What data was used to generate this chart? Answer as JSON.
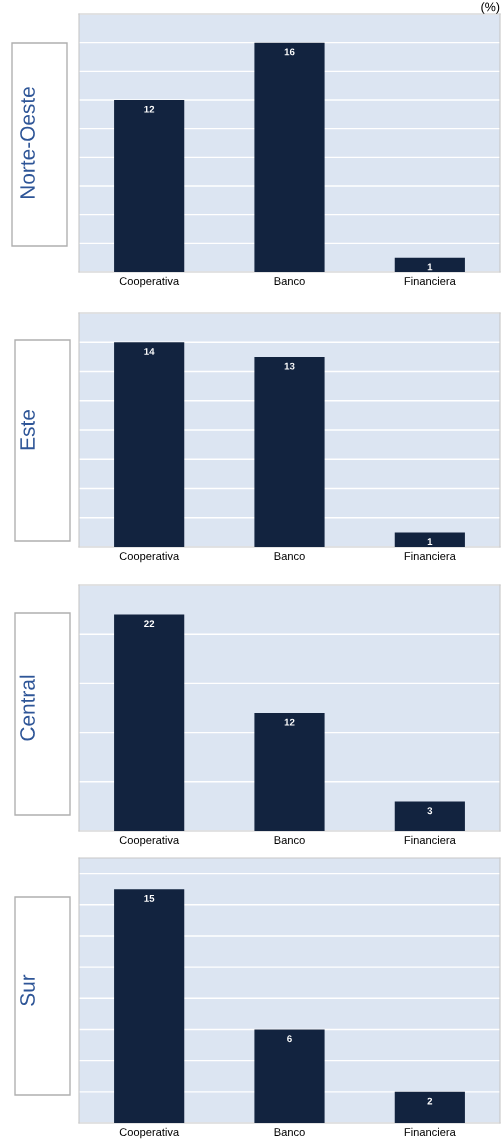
{
  "chart_data": [
    {
      "type": "bar",
      "title": "(%)",
      "ylabel": "Norte-Oeste",
      "categories": [
        "Cooperativa",
        "Banco",
        "Financiera"
      ],
      "values": [
        12,
        16,
        1
      ],
      "color": "#12233f",
      "ylim": [
        0,
        18
      ],
      "yticks": [
        {
          "value": 0,
          "label": null
        },
        {
          "value": 2,
          "label": null
        },
        {
          "value": 4,
          "label": null
        },
        {
          "value": 6,
          "label": null
        },
        {
          "value": 8,
          "label": null
        },
        {
          "value": 10,
          "label": null
        },
        {
          "value": 12,
          "label": null
        },
        {
          "value": 14,
          "label": null
        },
        {
          "value": 16,
          "label": null
        },
        {
          "value": 18,
          "label": null
        }
      ],
      "grid": "y",
      "data_labels": true,
      "tick_labels": "x"
    },
    {
      "type": "bar",
      "ylabel": "Este",
      "categories": [
        "Cooperativa",
        "Banco",
        "Financiera"
      ],
      "values": [
        14,
        13,
        1
      ],
      "color": "#12233f",
      "ylim": [
        0,
        16
      ],
      "yticks": [
        {
          "value": 0,
          "label": null
        },
        {
          "value": 2,
          "label": null
        },
        {
          "value": 4,
          "label": null
        },
        {
          "value": 6,
          "label": null
        },
        {
          "value": 8,
          "label": null
        },
        {
          "value": 10,
          "label": null
        },
        {
          "value": 12,
          "label": null
        },
        {
          "value": 14,
          "label": null
        },
        {
          "value": 16,
          "label": null
        }
      ],
      "grid": "y",
      "data_labels": true,
      "tick_labels": "x"
    },
    {
      "type": "bar",
      "ylabel": "Central",
      "categories": [
        "Cooperativa",
        "Banco",
        "Financiera"
      ],
      "values": [
        22,
        12,
        3
      ],
      "color": "#12233f",
      "ylim": [
        0,
        25
      ],
      "yticks": [
        {
          "value": 0,
          "label": null
        },
        {
          "value": 5,
          "label": null
        },
        {
          "value": 10,
          "label": null
        },
        {
          "value": 15,
          "label": null
        },
        {
          "value": 20,
          "label": null
        },
        {
          "value": 25,
          "label": null
        }
      ],
      "grid": "y",
      "data_labels": true,
      "tick_labels": "x"
    },
    {
      "type": "bar",
      "ylabel": "Sur",
      "categories": [
        "Cooperativa",
        "Banco",
        "Financiera"
      ],
      "values": [
        15,
        6,
        2
      ],
      "color": "#12233f",
      "ylim": [
        0,
        17
      ],
      "yticks": [
        {
          "value": 0,
          "label": null
        },
        {
          "value": 2,
          "label": null
        },
        {
          "value": 4,
          "label": null
        },
        {
          "value": 6,
          "label": null
        },
        {
          "value": 8,
          "label": null
        },
        {
          "value": 10,
          "label": null
        },
        {
          "value": 12,
          "label": null
        },
        {
          "value": 14,
          "label": null
        },
        {
          "value": 16,
          "label": null
        }
      ],
      "grid": "y",
      "data_labels": true,
      "tick_labels": "x"
    }
  ]
}
